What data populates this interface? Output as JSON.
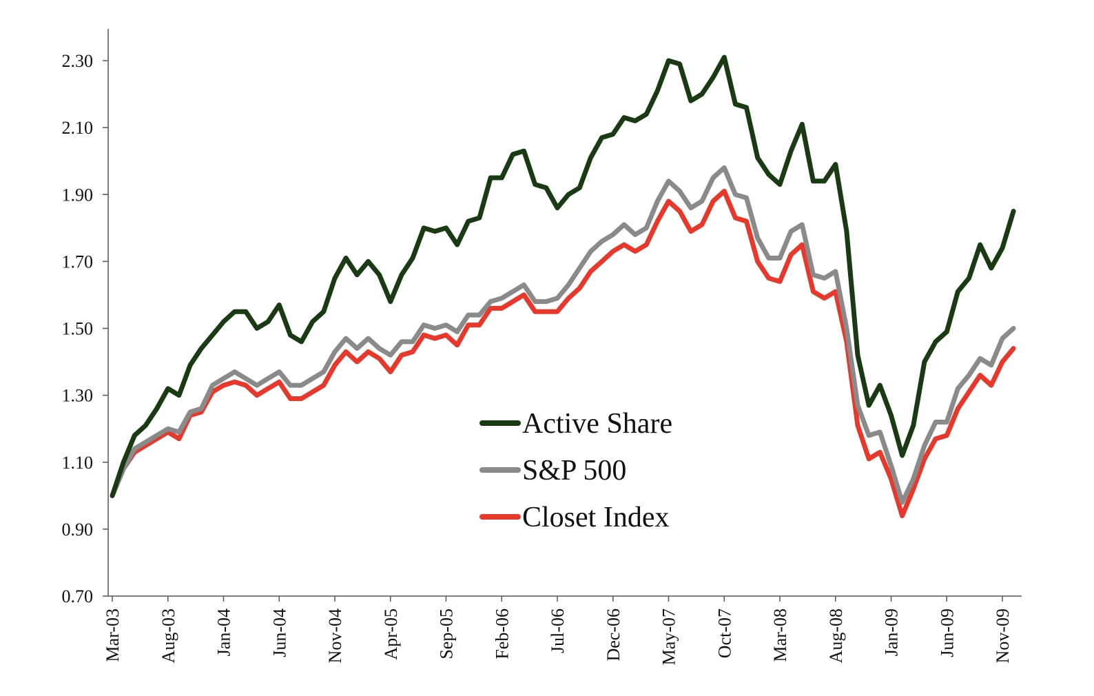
{
  "chart_data": {
    "type": "line",
    "title": "",
    "xlabel": "",
    "ylabel": "",
    "ylim": [
      0.7,
      2.4
    ],
    "yticks": [
      "0.70",
      "0.90",
      "1.10",
      "1.30",
      "1.50",
      "1.70",
      "1.90",
      "2.10",
      "2.30"
    ],
    "x_start": "Mar-03",
    "x_end": "Jan-10",
    "xticks": [
      "Mar-03",
      "Aug-03",
      "Jan-04",
      "Jun-04",
      "Nov-04",
      "Apr-05",
      "Sep-05",
      "Feb-06",
      "Jul-06",
      "Dec-06",
      "May-07",
      "Oct-07",
      "Mar-08",
      "Aug-08",
      "Jan-09",
      "Jun-09",
      "Nov-09"
    ],
    "grid": false,
    "legend_position": "center",
    "series": [
      {
        "name": "Active Share",
        "color": "#1a3a14",
        "values": [
          1.0,
          1.1,
          1.18,
          1.21,
          1.26,
          1.32,
          1.3,
          1.39,
          1.44,
          1.48,
          1.52,
          1.55,
          1.55,
          1.5,
          1.52,
          1.57,
          1.48,
          1.46,
          1.52,
          1.55,
          1.65,
          1.71,
          1.66,
          1.7,
          1.66,
          1.58,
          1.66,
          1.71,
          1.8,
          1.79,
          1.8,
          1.75,
          1.82,
          1.83,
          1.95,
          1.95,
          2.02,
          2.03,
          1.93,
          1.92,
          1.86,
          1.9,
          1.92,
          2.01,
          2.07,
          2.08,
          2.13,
          2.12,
          2.14,
          2.21,
          2.3,
          2.29,
          2.18,
          2.2,
          2.25,
          2.31,
          2.17,
          2.16,
          2.01,
          1.96,
          1.93,
          2.03,
          2.11,
          1.94,
          1.94,
          1.99,
          1.79,
          1.42,
          1.27,
          1.33,
          1.24,
          1.12,
          1.21,
          1.4,
          1.46,
          1.49,
          1.61,
          1.65,
          1.75,
          1.68,
          1.74,
          1.85
        ]
      },
      {
        "name": "S&P 500",
        "color": "#8a8a8a",
        "values": [
          1.0,
          1.08,
          1.14,
          1.16,
          1.18,
          1.2,
          1.19,
          1.25,
          1.26,
          1.33,
          1.35,
          1.37,
          1.35,
          1.33,
          1.35,
          1.37,
          1.33,
          1.33,
          1.35,
          1.37,
          1.43,
          1.47,
          1.44,
          1.47,
          1.44,
          1.42,
          1.46,
          1.46,
          1.51,
          1.5,
          1.51,
          1.49,
          1.54,
          1.54,
          1.58,
          1.59,
          1.61,
          1.63,
          1.58,
          1.58,
          1.59,
          1.63,
          1.68,
          1.73,
          1.76,
          1.78,
          1.81,
          1.78,
          1.8,
          1.88,
          1.94,
          1.91,
          1.86,
          1.88,
          1.95,
          1.98,
          1.9,
          1.89,
          1.77,
          1.71,
          1.71,
          1.79,
          1.81,
          1.66,
          1.65,
          1.67,
          1.5,
          1.27,
          1.18,
          1.19,
          1.09,
          0.98,
          1.05,
          1.15,
          1.22,
          1.22,
          1.32,
          1.36,
          1.41,
          1.39,
          1.47,
          1.5
        ]
      },
      {
        "name": "Closet Index",
        "color": "#e8382c",
        "values": [
          1.0,
          1.08,
          1.13,
          1.15,
          1.17,
          1.19,
          1.17,
          1.24,
          1.25,
          1.31,
          1.33,
          1.34,
          1.33,
          1.3,
          1.32,
          1.34,
          1.29,
          1.29,
          1.31,
          1.33,
          1.39,
          1.43,
          1.4,
          1.43,
          1.41,
          1.37,
          1.42,
          1.43,
          1.48,
          1.47,
          1.48,
          1.45,
          1.51,
          1.51,
          1.56,
          1.56,
          1.58,
          1.6,
          1.55,
          1.55,
          1.55,
          1.59,
          1.62,
          1.67,
          1.7,
          1.73,
          1.75,
          1.73,
          1.75,
          1.82,
          1.88,
          1.85,
          1.79,
          1.81,
          1.88,
          1.91,
          1.83,
          1.82,
          1.7,
          1.65,
          1.64,
          1.72,
          1.75,
          1.61,
          1.59,
          1.61,
          1.46,
          1.21,
          1.11,
          1.13,
          1.05,
          0.94,
          1.02,
          1.11,
          1.17,
          1.18,
          1.26,
          1.31,
          1.36,
          1.33,
          1.4,
          1.44
        ]
      }
    ]
  }
}
